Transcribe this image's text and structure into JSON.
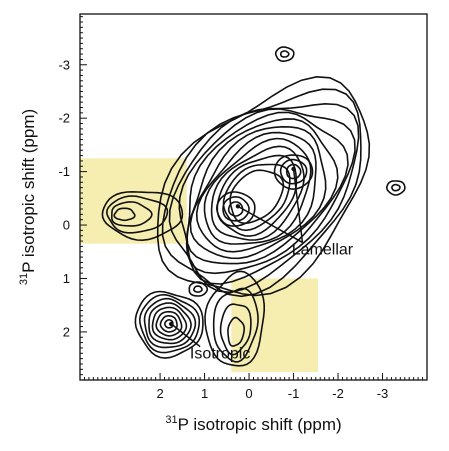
{
  "chart_data": {
    "type": "contour",
    "x_axis": {
      "label_sup": "31",
      "label_text": "P isotropic shift (ppm)",
      "range": [
        3.8,
        -4.0
      ],
      "ticks": [
        2,
        1,
        0,
        -1,
        -2,
        -3
      ],
      "tick_labels": [
        "2",
        "1",
        "0",
        "-1",
        "-2",
        "-3"
      ]
    },
    "y_axis": {
      "label_sup": "31",
      "label_text": "P isotropic shift (ppm)",
      "range": [
        -3.95,
        2.9
      ],
      "ticks": [
        -3,
        -2,
        -1,
        0,
        1,
        2
      ],
      "tick_labels": [
        "-3",
        "-2",
        "-1",
        "0",
        "1",
        "2"
      ]
    },
    "peaks": [
      {
        "id": "diag-main",
        "x": 0.3,
        "y": -0.3
      },
      {
        "id": "diag-upper",
        "x": -1.0,
        "y": -1.0
      },
      {
        "id": "cross-left",
        "x": 2.8,
        "y": -0.2
      },
      {
        "id": "cross-bottom",
        "x": 0.3,
        "y": 2.0
      },
      {
        "id": "isotropic",
        "x": 1.8,
        "y": 1.85
      },
      {
        "id": "small-left",
        "x": 1.15,
        "y": 1.2
      },
      {
        "id": "small-top",
        "x": -0.8,
        "y": -3.2
      },
      {
        "id": "small-right",
        "x": -3.3,
        "y": -0.7
      }
    ],
    "highlight_regions": [
      {
        "id": "cross-peak-left",
        "x": [
          3.8,
          1.4
        ],
        "y": [
          -1.25,
          0.35
        ],
        "color": "#f5eeb0"
      },
      {
        "id": "cross-peak-bottom",
        "x": [
          0.4,
          -1.55
        ],
        "y": [
          1.0,
          2.75
        ],
        "color": "#f5eeb0"
      }
    ],
    "annotations": [
      {
        "text": "Lamellar",
        "label_at": [
          -1.65,
          0.55
        ],
        "points_to": [
          [
            0.25,
            -0.35
          ],
          [
            -1.0,
            -1.05
          ]
        ]
      },
      {
        "text": "Isotropic",
        "label_at": [
          0.65,
          2.5
        ],
        "points_to": [
          [
            1.75,
            1.85
          ]
        ]
      }
    ]
  }
}
